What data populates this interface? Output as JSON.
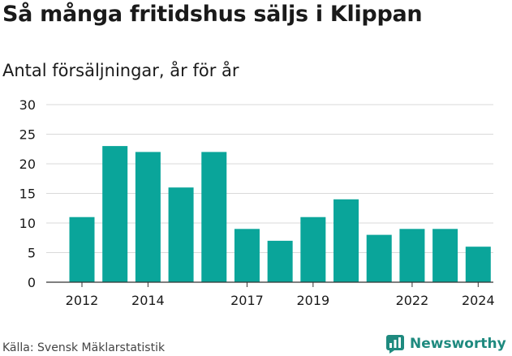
{
  "header": {
    "title": "Så många fritidshus säljs i Klippan",
    "subtitle": "Antal försäljningar, år för år"
  },
  "footer": {
    "source": "Källa: Svensk Mäklarstatistik",
    "brand": "Newsworthy"
  },
  "colors": {
    "bar": "#0aa59a",
    "grid": "#d9d9d9",
    "brand": "#1f8a7f"
  },
  "icons": {
    "brand_logo": "newsworthy-logo-icon"
  },
  "chart_data": {
    "type": "bar",
    "title": "Så många fritidshus säljs i Klippan",
    "subtitle": "Antal försäljningar, år för år",
    "xlabel": "",
    "ylabel": "",
    "categories": [
      "2012",
      "2013",
      "2014",
      "2015",
      "2016",
      "2017",
      "2018",
      "2019",
      "2020",
      "2021",
      "2022",
      "2023",
      "2024"
    ],
    "values": [
      11,
      23,
      22,
      16,
      22,
      9,
      7,
      11,
      14,
      8,
      9,
      9,
      6
    ],
    "ylim": [
      0,
      30
    ],
    "yticks": [
      0,
      5,
      10,
      15,
      20,
      25,
      30
    ],
    "xtick_labels": [
      "2012",
      "2014",
      "2017",
      "2019",
      "2022",
      "2024"
    ],
    "grid": true,
    "legend": "none"
  }
}
